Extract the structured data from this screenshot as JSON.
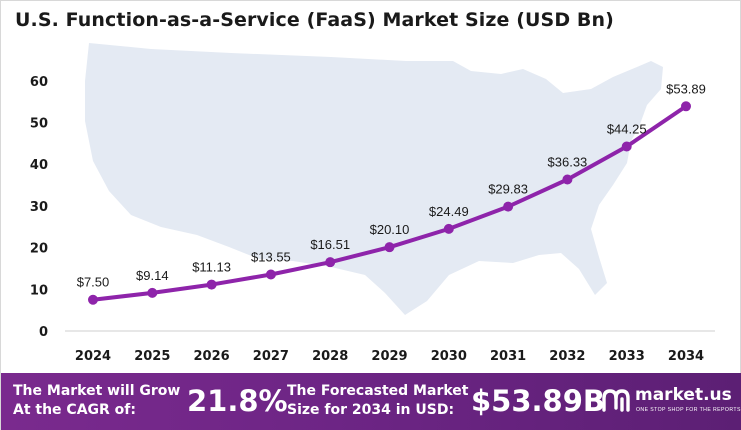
{
  "chart_data": {
    "type": "line",
    "title": "U.S. Function-as-a-Service (FaaS) Market Size (USD Bn)",
    "categories": [
      "2024",
      "2025",
      "2026",
      "2027",
      "2028",
      "2029",
      "2030",
      "2031",
      "2032",
      "2033",
      "2034"
    ],
    "series": [
      {
        "values": [
          7.5,
          9.14,
          11.13,
          13.55,
          16.51,
          20.1,
          24.49,
          29.83,
          36.33,
          44.25,
          53.89
        ],
        "labels": [
          "$7.50",
          "$9.14",
          "$11.13",
          "$13.55",
          "$16.51",
          "$20.10",
          "$24.49",
          "$29.83",
          "$36.33",
          "$44.25",
          "$53.89"
        ],
        "color": "#8e24aa"
      }
    ],
    "y_ticks": [
      "0",
      "10",
      "20",
      "30",
      "40",
      "50",
      "60"
    ],
    "ylim": [
      0,
      60
    ],
    "grid": false,
    "background": "map of the United States (light blue silhouette)"
  },
  "banner": {
    "cagr_label": "The Market will Grow At the CAGR of:",
    "cagr_value": "21.8%",
    "forecast_label": "The Forecasted Market Size for 2034 in USD:",
    "forecast_value": "$53.89B",
    "logo_name": "market.us",
    "logo_tagline": "ONE STOP SHOP FOR THE REPORTS"
  },
  "colors": {
    "line": "#8e24aa",
    "banner": "#6d2585",
    "map": "#e4eaf3"
  }
}
